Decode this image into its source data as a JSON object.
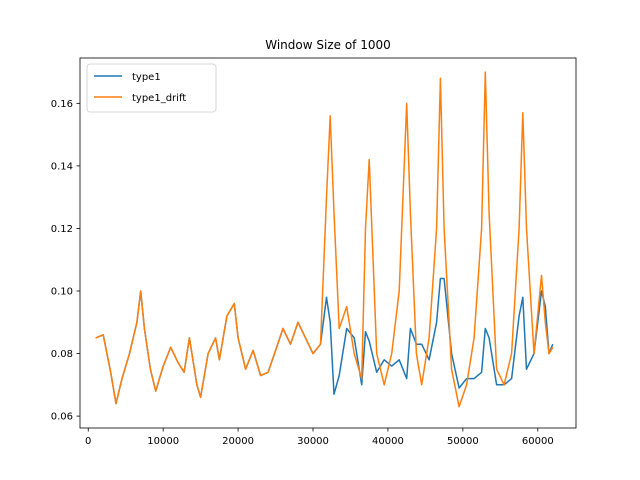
{
  "chart_data": {
    "type": "line",
    "title": "Window Size of 1000",
    "xlabel": "",
    "ylabel": "",
    "xlim": [
      -1100,
      65100
    ],
    "ylim": [
      0.0562,
      0.1745
    ],
    "x_ticks": [
      0,
      10000,
      20000,
      30000,
      40000,
      50000,
      60000
    ],
    "x_tick_labels": [
      "0",
      "10000",
      "20000",
      "30000",
      "40000",
      "50000",
      "60000"
    ],
    "y_ticks": [
      0.06,
      0.08,
      0.1,
      0.12,
      0.14,
      0.16
    ],
    "y_tick_labels": [
      "0.06",
      "0.08",
      "0.10",
      "0.12",
      "0.14",
      "0.16"
    ],
    "grid": false,
    "legend_position": "top-left",
    "series": [
      {
        "name": "type1",
        "color": "#1f77b4",
        "x": [
          1000,
          2000,
          3000,
          3700,
          4500,
          5500,
          6500,
          7000,
          7500,
          8300,
          9000,
          10000,
          11000,
          12000,
          12800,
          13500,
          14500,
          15000,
          16000,
          17000,
          17500,
          18500,
          19500,
          20000,
          21000,
          22000,
          23000,
          24000,
          25000,
          26000,
          27000,
          28000,
          29000,
          30000,
          31000,
          31800,
          32300,
          32800,
          33500,
          34500,
          35500,
          36500,
          37000,
          37500,
          38500,
          39500,
          40500,
          41500,
          42500,
          43000,
          43800,
          44500,
          45500,
          46500,
          47000,
          47500,
          48500,
          49500,
          50500,
          51500,
          52500,
          53000,
          53500,
          54500,
          55500,
          56500,
          57500,
          58000,
          58500,
          59500,
          60500,
          61000,
          61500,
          62000
        ],
        "y": [
          0.085,
          0.086,
          0.074,
          0.064,
          0.072,
          0.08,
          0.09,
          0.1,
          0.088,
          0.075,
          0.068,
          0.076,
          0.082,
          0.077,
          0.074,
          0.085,
          0.07,
          0.066,
          0.08,
          0.085,
          0.078,
          0.092,
          0.096,
          0.085,
          0.075,
          0.081,
          0.073,
          0.074,
          0.081,
          0.088,
          0.083,
          0.09,
          0.085,
          0.08,
          0.083,
          0.098,
          0.09,
          0.067,
          0.073,
          0.088,
          0.085,
          0.07,
          0.087,
          0.084,
          0.074,
          0.078,
          0.076,
          0.078,
          0.072,
          0.088,
          0.083,
          0.083,
          0.078,
          0.09,
          0.104,
          0.104,
          0.08,
          0.069,
          0.072,
          0.072,
          0.074,
          0.088,
          0.085,
          0.07,
          0.07,
          0.072,
          0.092,
          0.098,
          0.075,
          0.08,
          0.1,
          0.095,
          0.08,
          0.083
        ]
      },
      {
        "name": "type1_drift",
        "color": "#ff7f0e",
        "x": [
          1000,
          2000,
          3000,
          3700,
          4500,
          5500,
          6500,
          7000,
          7500,
          8300,
          9000,
          10000,
          11000,
          12000,
          12800,
          13500,
          14500,
          15000,
          16000,
          17000,
          17500,
          18500,
          19500,
          20000,
          21000,
          22000,
          23000,
          24000,
          25000,
          26000,
          27000,
          28000,
          29000,
          30000,
          31000,
          31800,
          32300,
          32800,
          33500,
          34500,
          35500,
          36500,
          37000,
          37500,
          38500,
          39500,
          40500,
          41500,
          42500,
          43000,
          43800,
          44500,
          45500,
          46500,
          47000,
          47500,
          48500,
          49500,
          50500,
          51500,
          52500,
          53000,
          53500,
          54500,
          55500,
          56500,
          57500,
          58000,
          58500,
          59500,
          60500,
          61000,
          61500,
          62000
        ],
        "y": [
          0.085,
          0.086,
          0.074,
          0.064,
          0.072,
          0.08,
          0.09,
          0.1,
          0.088,
          0.075,
          0.068,
          0.076,
          0.082,
          0.077,
          0.074,
          0.085,
          0.07,
          0.066,
          0.08,
          0.085,
          0.078,
          0.092,
          0.096,
          0.085,
          0.075,
          0.081,
          0.073,
          0.074,
          0.081,
          0.088,
          0.083,
          0.09,
          0.085,
          0.08,
          0.083,
          0.13,
          0.156,
          0.125,
          0.088,
          0.095,
          0.08,
          0.072,
          0.12,
          0.142,
          0.08,
          0.07,
          0.08,
          0.1,
          0.16,
          0.125,
          0.08,
          0.07,
          0.085,
          0.12,
          0.168,
          0.12,
          0.075,
          0.063,
          0.07,
          0.085,
          0.12,
          0.17,
          0.125,
          0.075,
          0.07,
          0.08,
          0.12,
          0.157,
          0.12,
          0.08,
          0.105,
          0.09,
          0.08,
          0.082
        ]
      }
    ]
  }
}
